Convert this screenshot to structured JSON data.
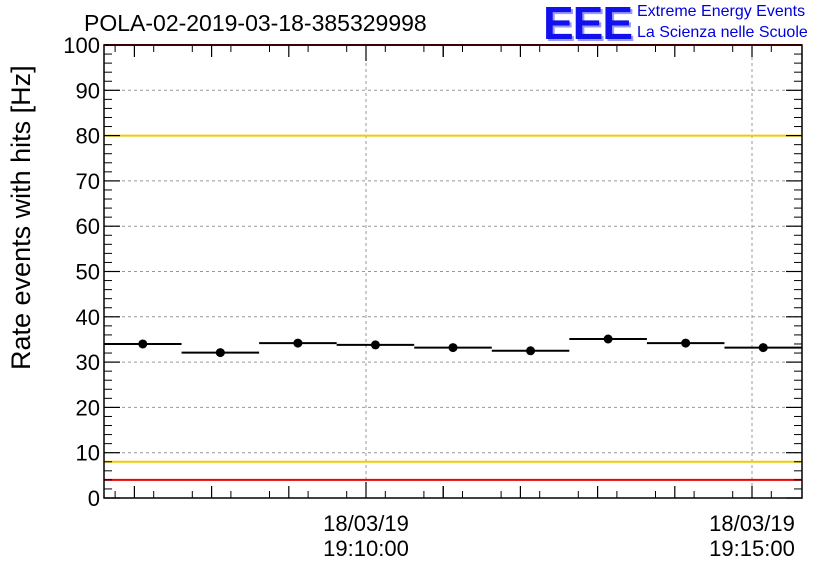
{
  "chart_data": {
    "type": "scatter",
    "title": "POLA-02-2019-03-18-385329998",
    "ylabel": "Rate events with hits [Hz]",
    "xlabel": "",
    "ylim": [
      0,
      100
    ],
    "yticks": [
      "0",
      "10",
      "20",
      "30",
      "40",
      "50",
      "60",
      "70",
      "80",
      "90",
      "100"
    ],
    "xticks": [
      {
        "date": "18/03/19",
        "time": "19:10:00"
      },
      {
        "date": "18/03/19",
        "time": "19:15:00"
      }
    ],
    "grid": true,
    "series": [
      {
        "values": [
          34.0,
          32.1,
          34.2,
          33.8,
          33.2,
          32.5,
          35.1,
          34.2,
          33.2
        ]
      }
    ],
    "thresholds": [
      {
        "value": 100,
        "color": "#ee0000"
      },
      {
        "value": 80,
        "color": "#eecc00"
      },
      {
        "value": 8,
        "color": "#eecc00"
      },
      {
        "value": 4,
        "color": "#ee0000"
      }
    ]
  },
  "logo": {
    "text": "EEE",
    "line1": "Extreme Energy Events",
    "line2": "La Scienza nelle Scuole"
  }
}
